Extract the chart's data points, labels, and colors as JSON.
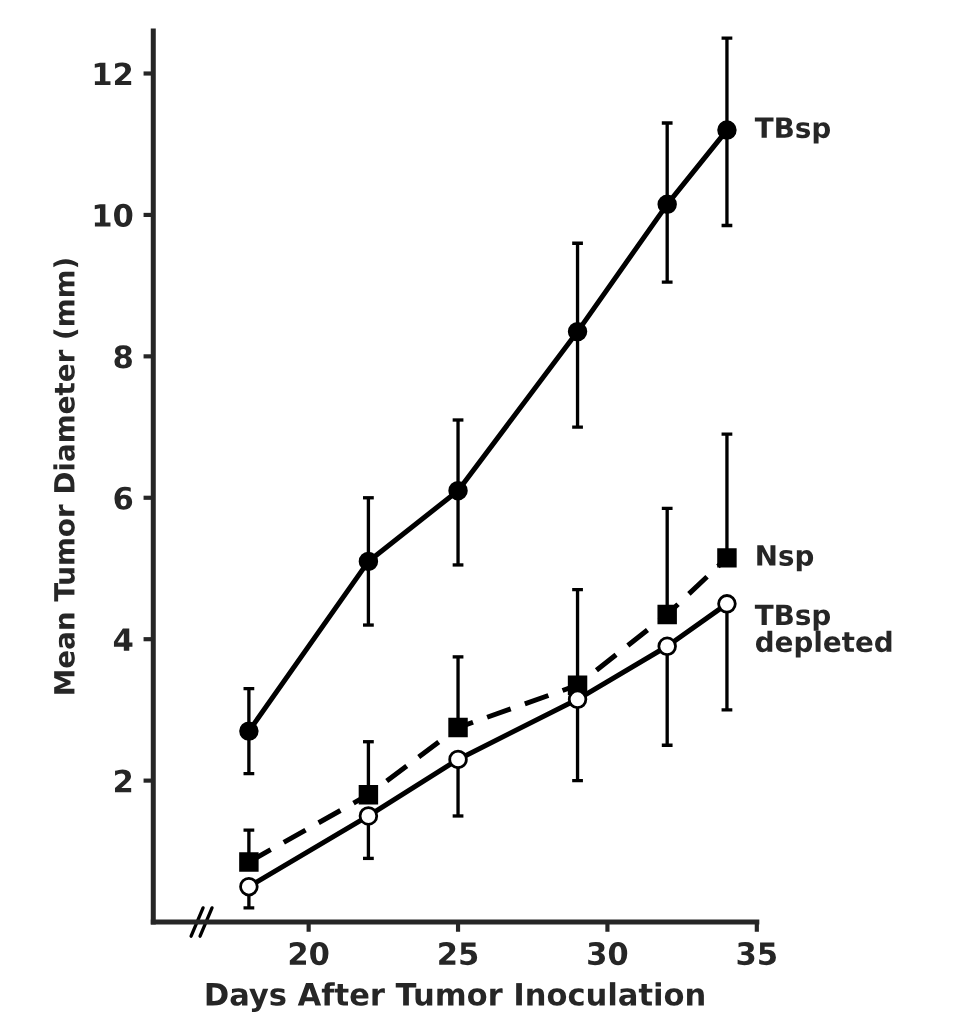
{
  "chart_data": {
    "type": "line",
    "xlabel": "Days After Tumor Inoculation",
    "ylabel": "Mean Tumor Diameter (mm)",
    "xlim": [
      14.8,
      35
    ],
    "xticks": [
      20,
      25,
      30,
      35
    ],
    "ylim": [
      0,
      12.6
    ],
    "yticks": [
      2,
      4,
      6,
      8,
      10,
      12
    ],
    "grid": false,
    "legend": false,
    "series": [
      {
        "name": "TBsp",
        "color": "#000000",
        "marker": "circle",
        "line_style": "solid",
        "x": [
          18,
          22,
          25,
          29,
          32,
          34
        ],
        "values": [
          2.7,
          5.1,
          6.1,
          8.35,
          10.15,
          11.2
        ],
        "errors": [
          [
            2.1,
            3.3
          ],
          [
            4.2,
            6.0
          ],
          [
            5.05,
            7.1
          ],
          [
            7.0,
            9.6
          ],
          [
            9.05,
            11.3
          ],
          [
            9.85,
            12.5
          ]
        ]
      },
      {
        "name": "Nsp",
        "color": "#000000",
        "marker": "square",
        "line_style": "dashed",
        "x": [
          18,
          22,
          25,
          29,
          32,
          34
        ],
        "values": [
          0.85,
          1.8,
          2.75,
          3.35,
          4.35,
          5.15
        ],
        "errors": [
          [
            0.85,
            1.3
          ],
          [
            1.8,
            2.55
          ],
          [
            2.75,
            3.75
          ],
          [
            3.35,
            4.7
          ],
          [
            4.35,
            5.85
          ],
          [
            5.15,
            6.9
          ]
        ]
      },
      {
        "name": "TBsp\ndepleted",
        "color": "#000000",
        "marker": "open circle",
        "line_style": "solid",
        "x": [
          18,
          22,
          25,
          29,
          32,
          34
        ],
        "values": [
          0.5,
          1.5,
          2.3,
          3.15,
          3.9,
          4.5
        ],
        "errors": [
          [
            0.2,
            0.5
          ],
          [
            0.9,
            1.5
          ],
          [
            1.5,
            2.3
          ],
          [
            2.0,
            3.15
          ],
          [
            2.5,
            3.9
          ],
          [
            3.0,
            4.5
          ]
        ]
      }
    ]
  }
}
